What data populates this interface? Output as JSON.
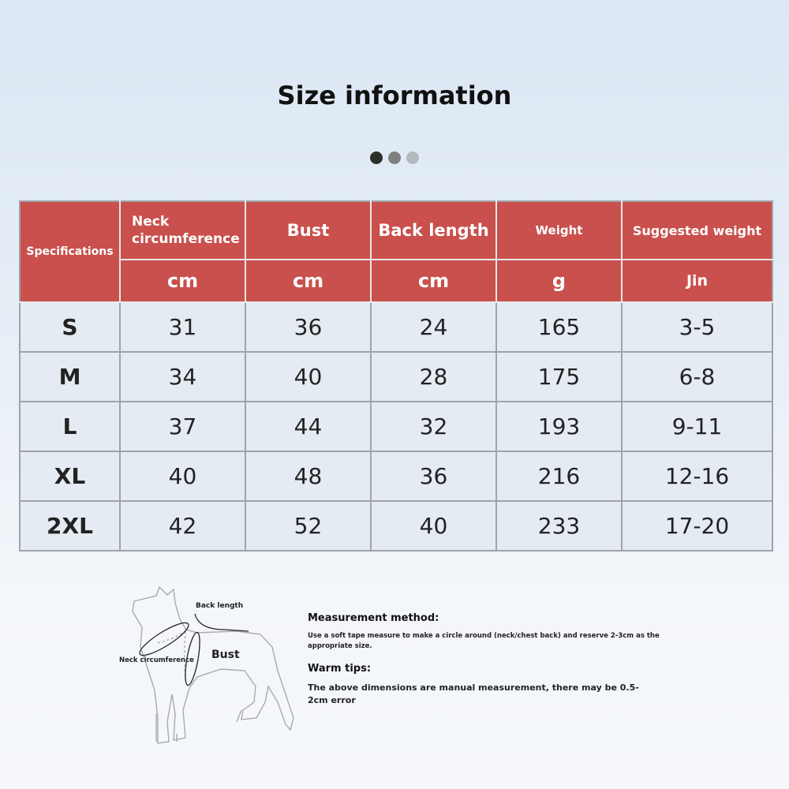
{
  "title": "Size information",
  "dots": [
    "#2b302b",
    "#7d817f",
    "#b3b8bc"
  ],
  "colors": {
    "header_bg": "#c9504c",
    "row_bg": "#e5ebf3",
    "border": "#a0a3a8"
  },
  "table": {
    "spec_header": "Specifications",
    "columns": [
      {
        "label": "Neck circumference",
        "unit": "cm"
      },
      {
        "label": "Bust",
        "unit": "cm"
      },
      {
        "label": "Back length",
        "unit": "cm"
      },
      {
        "label": "Weight",
        "unit": "g"
      },
      {
        "label": "Suggested weight",
        "unit": "Jin"
      }
    ],
    "rows": [
      {
        "size": "S",
        "values": [
          "31",
          "36",
          "24",
          "165",
          "3-5"
        ]
      },
      {
        "size": "M",
        "values": [
          "34",
          "40",
          "28",
          "175",
          "6-8"
        ]
      },
      {
        "size": "L",
        "values": [
          "37",
          "44",
          "32",
          "193",
          "9-11"
        ]
      },
      {
        "size": "XL",
        "values": [
          "40",
          "48",
          "36",
          "216",
          "12-16"
        ]
      },
      {
        "size": "2XL",
        "values": [
          "42",
          "52",
          "40",
          "233",
          "17-20"
        ]
      }
    ]
  },
  "diagram": {
    "back_length": "Back length",
    "neck_circumference": "Neck circumference",
    "bust": "Bust"
  },
  "notes": {
    "method_heading": "Measurement method:",
    "method_text": "Use a soft tape measure to make a circle around (neck/chest back) and reserve 2-3cm as the appropriate size.",
    "tips_heading": "Warm tips:",
    "tips_text": "The above dimensions are manual measurement, there may be 0.5-2cm error"
  }
}
